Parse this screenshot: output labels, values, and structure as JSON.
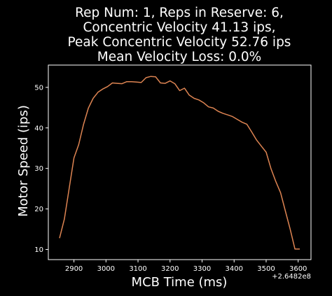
{
  "chart_data": {
    "type": "line",
    "title_lines": [
      "Rep Num: 1, Reps in Reserve: 6,",
      "Concentric Velocity 41.13 ips,",
      "Peak Concentric Velocity 52.76 ips",
      "Mean Velocity Loss: 0.0%"
    ],
    "xlabel": "MCB Time (ms)",
    "ylabel": "Motor Speed (ips)",
    "x_offset_label": "+2.6482e8",
    "xlim": [
      2820,
      3640
    ],
    "ylim": [
      7.5,
      55.5
    ],
    "x_ticks": [
      2900,
      3000,
      3100,
      3200,
      3300,
      3400,
      3500,
      3600
    ],
    "y_ticks": [
      10,
      20,
      30,
      40,
      50
    ],
    "line_color": "#dd8452",
    "background": "#000000",
    "foreground": "#ffffff",
    "series": [
      {
        "x": [
          2855,
          2870,
          2885,
          2900,
          2915,
          2930,
          2945,
          2960,
          2975,
          2990,
          3005,
          3020,
          3035,
          3050,
          3065,
          3080,
          3095,
          3110,
          3125,
          3140,
          3155,
          3170,
          3185,
          3200,
          3215,
          3230,
          3245,
          3260,
          3275,
          3290,
          3305,
          3320,
          3335,
          3350,
          3365,
          3380,
          3395,
          3410,
          3425,
          3440,
          3455,
          3470,
          3485,
          3500,
          3515,
          3530,
          3545,
          3560,
          3575,
          3590,
          3605
        ],
        "y": [
          12.8,
          17.5,
          25,
          32.6,
          35.9,
          40.9,
          44.9,
          47.3,
          48.8,
          49.6,
          50.2,
          51.1,
          51.0,
          50.9,
          51.4,
          51.4,
          51.3,
          51.2,
          52.4,
          52.7,
          52.6,
          51.1,
          51.0,
          51.6,
          50.9,
          49.2,
          49.8,
          48.1,
          47.3,
          46.9,
          46.2,
          45.2,
          44.9,
          44.1,
          43.6,
          43.2,
          42.8,
          42.1,
          41.4,
          40.9,
          39.0,
          37.0,
          35.5,
          34.0,
          30.0,
          26.8,
          24.0,
          19.5,
          15.0,
          10.1,
          10.1
        ]
      }
    ]
  }
}
